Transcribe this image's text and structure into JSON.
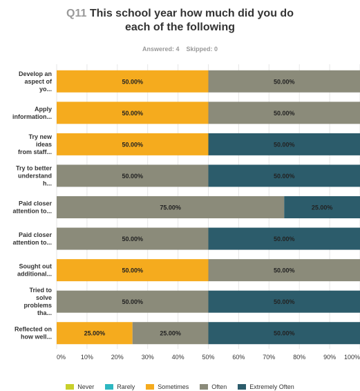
{
  "question": {
    "number": "Q11",
    "text": "This school year how much did you do\neach of the following",
    "answered_label": "Answered: 4",
    "skipped_label": "Skipped: 0"
  },
  "chart_data": {
    "type": "bar",
    "orientation": "horizontal",
    "stacked": true,
    "categories": [
      [
        "Develop an",
        "aspect of",
        "yo..."
      ],
      [
        "Apply",
        "information..."
      ],
      [
        "Try new",
        "ideas",
        "from staff..."
      ],
      [
        "Try to better",
        "understand",
        "h..."
      ],
      [
        "Paid closer",
        "attention to..."
      ],
      [
        "Paid closer",
        "attention to..."
      ],
      [
        "Sought out",
        "additional..."
      ],
      [
        "Tried to",
        "solve",
        "problems",
        "tha..."
      ],
      [
        "Reflected on",
        "how well..."
      ]
    ],
    "series": [
      {
        "name": "Never",
        "color": "#c8d02b",
        "values": [
          0,
          0,
          0,
          0,
          0,
          0,
          0,
          0,
          0
        ]
      },
      {
        "name": "Rarely",
        "color": "#2db7c1",
        "values": [
          0,
          0,
          0,
          0,
          0,
          0,
          0,
          0,
          0
        ]
      },
      {
        "name": "Sometimes",
        "color": "#f5ab1e",
        "values": [
          50,
          50,
          50,
          0,
          0,
          0,
          50,
          0,
          25
        ]
      },
      {
        "name": "Often",
        "color": "#8b8b7a",
        "values": [
          50,
          50,
          0,
          50,
          75,
          50,
          50,
          50,
          25
        ]
      },
      {
        "name": "Extremely Often",
        "color": "#2c5c6b",
        "values": [
          0,
          0,
          50,
          50,
          25,
          50,
          0,
          50,
          50
        ]
      }
    ],
    "x_ticks": [
      "0%",
      "10%",
      "20%",
      "30%",
      "40%",
      "50%",
      "60%",
      "70%",
      "80%",
      "90%",
      "100%"
    ],
    "xlim": [
      0,
      100
    ],
    "grid": true,
    "data_label_format": "0.00%",
    "legend_position": "bottom"
  }
}
